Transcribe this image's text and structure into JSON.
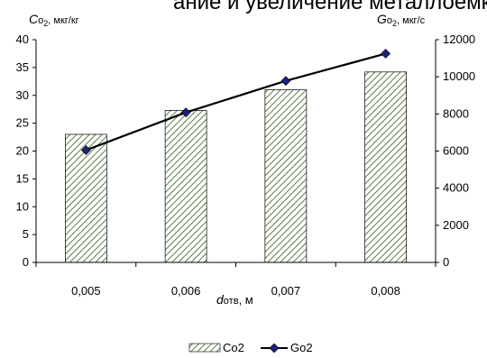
{
  "header_fragment": "ание и увеличение металлоемкости.",
  "chart_data": {
    "type": "bar",
    "categories": [
      "0,005",
      "0,006",
      "0,007",
      "0,008"
    ],
    "x_title": {
      "symbol": "d",
      "sub": "отв",
      "unit": ",  м"
    },
    "y_left_title": {
      "symbol": "C",
      "sub": "o",
      "sub2": "2",
      "unit": ", мкг/кг"
    },
    "y_right_title": {
      "symbol": "G",
      "sub": "o",
      "sub2": "2",
      "unit": ", мкг/с"
    },
    "y_left": {
      "min": 0,
      "max": 40,
      "step": 5
    },
    "y_right": {
      "min": 0,
      "max": 12000,
      "step": 2000
    },
    "series": [
      {
        "name": "Co2",
        "kind": "bar",
        "axis": "left",
        "values": [
          23,
          27.3,
          31,
          34.2
        ]
      },
      {
        "name": "Go2",
        "kind": "line",
        "axis": "right",
        "values": [
          6050,
          8080,
          9780,
          11250
        ]
      }
    ],
    "legend_position": "bottom",
    "grid": false,
    "bar_pattern": "diagonal-hatch",
    "colors": {
      "bar_fill": "#ffffff",
      "hatch": "#5b7d46",
      "line": "#000000",
      "marker": "#1a237e"
    }
  }
}
